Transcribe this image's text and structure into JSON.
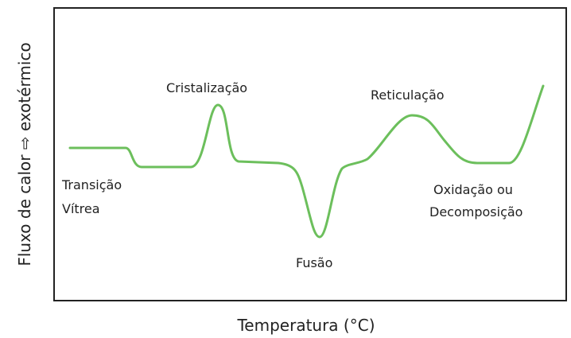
{
  "axes": {
    "x_label": "Temperatura (°C)",
    "y_label": "Fluxo de calor ⇨ exotérmico"
  },
  "annotations": [
    {
      "lines": [
        "Transição",
        "Vítrea"
      ]
    },
    {
      "lines": [
        "Cristalização"
      ]
    },
    {
      "lines": [
        "Fusão"
      ]
    },
    {
      "lines": [
        "Reticulação"
      ]
    },
    {
      "lines": [
        "Oxidação ou",
        "Decomposição"
      ]
    }
  ]
}
